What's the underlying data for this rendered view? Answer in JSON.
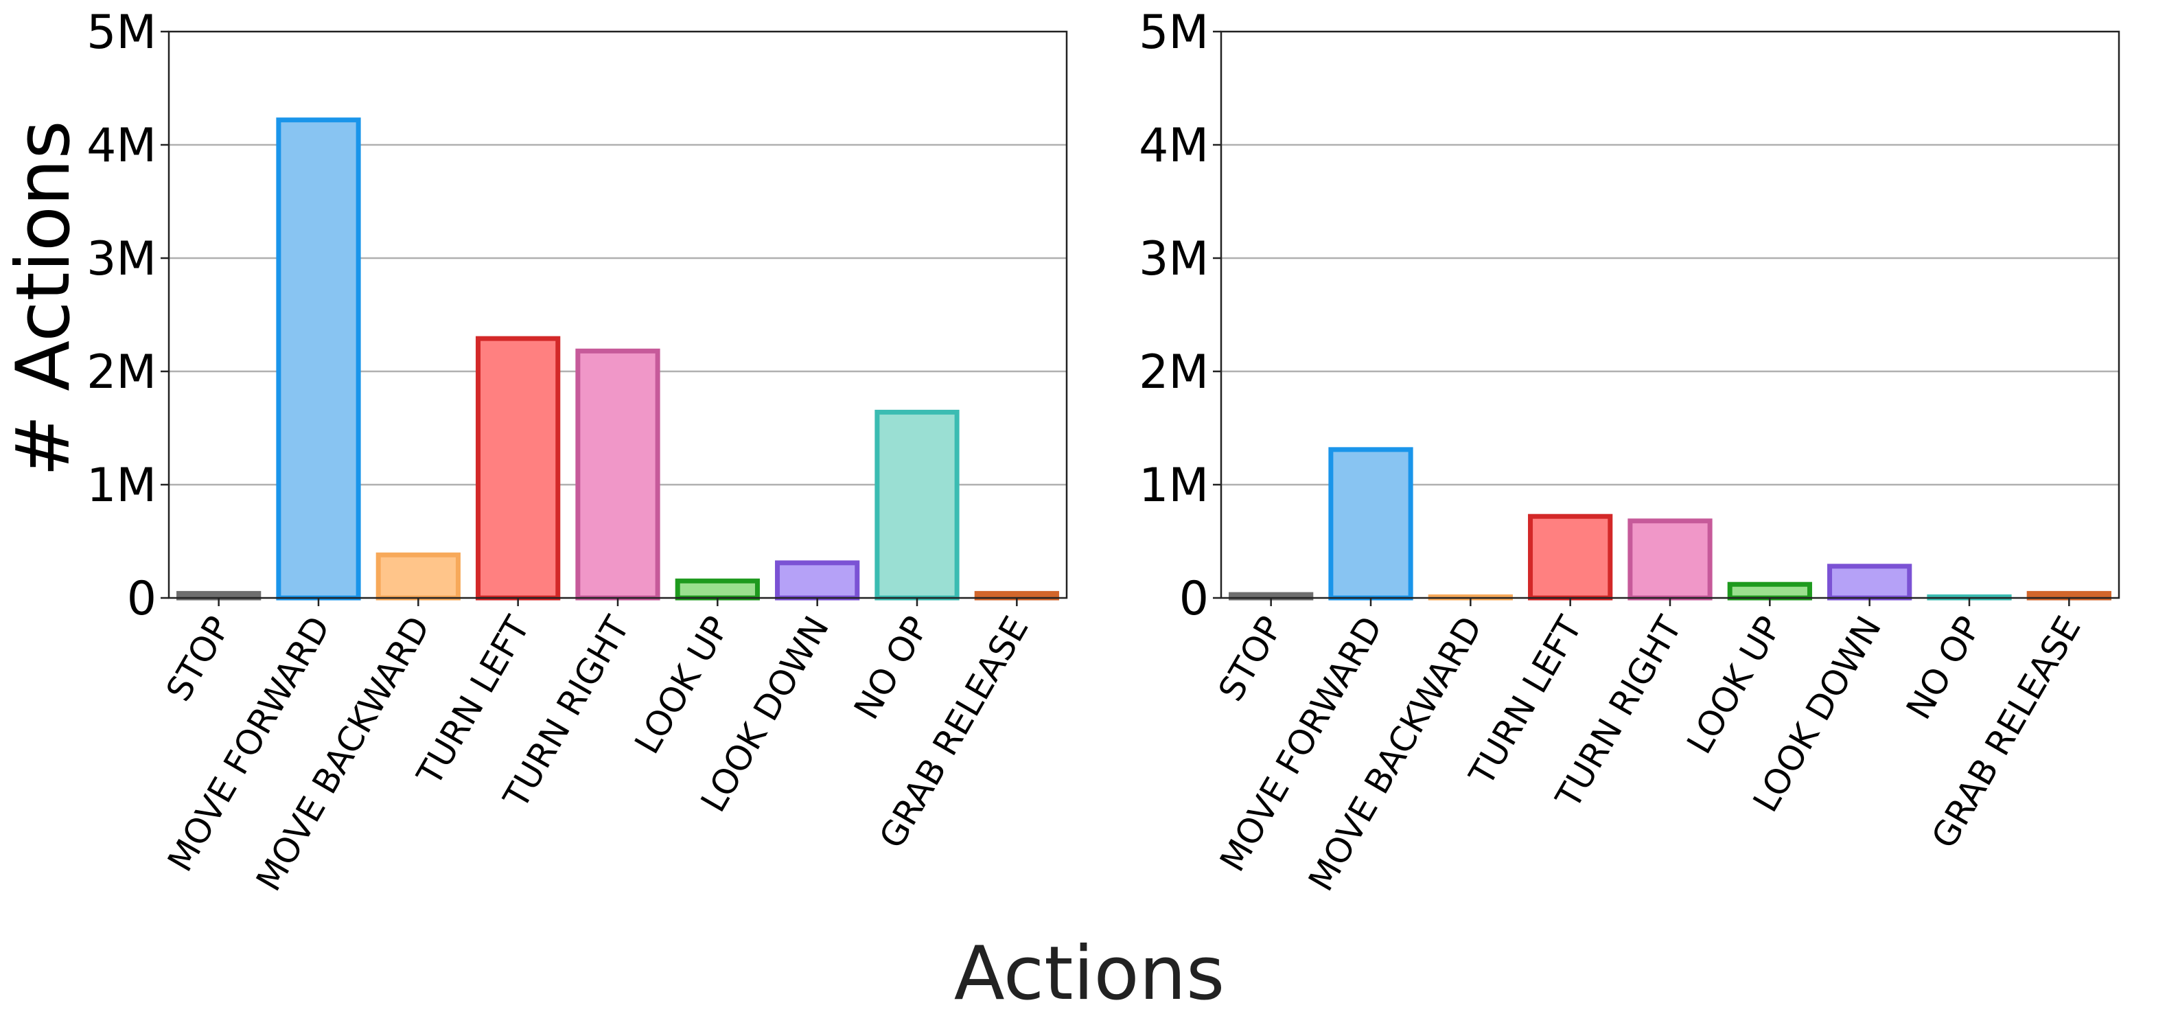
{
  "chart_data": [
    {
      "type": "bar",
      "categories": [
        "STOP",
        "MOVE FORWARD",
        "MOVE BACKWARD",
        "TURN LEFT",
        "TURN RIGHT",
        "LOOK UP",
        "LOOK DOWN",
        "NO OP",
        "GRAB RELEASE"
      ],
      "values": [
        40000,
        4220000,
        380000,
        2290000,
        2180000,
        150000,
        310000,
        1640000,
        40000
      ],
      "ylabel": "# Actions",
      "ylim": [
        0,
        5000000
      ],
      "yticks": [
        0,
        1000000,
        2000000,
        3000000,
        4000000,
        5000000
      ],
      "ytick_labels": [
        "0",
        "1M",
        "2M",
        "3M",
        "4M",
        "5M"
      ],
      "grid": "horizontal",
      "legend": "none"
    },
    {
      "type": "bar",
      "categories": [
        "STOP",
        "MOVE FORWARD",
        "MOVE BACKWARD",
        "TURN LEFT",
        "TURN RIGHT",
        "LOOK UP",
        "LOOK DOWN",
        "NO OP",
        "GRAB RELEASE"
      ],
      "values": [
        30000,
        1310000,
        10000,
        720000,
        680000,
        120000,
        280000,
        10000,
        40000
      ],
      "ylim": [
        0,
        5000000
      ],
      "yticks": [
        0,
        1000000,
        2000000,
        3000000,
        4000000,
        5000000
      ],
      "ytick_labels": [
        "0",
        "1M",
        "2M",
        "3M",
        "4M",
        "5M"
      ],
      "grid": "horizontal",
      "legend": "none"
    }
  ],
  "xlabel": "Actions",
  "colors": {
    "fills": [
      "#8c8c8c",
      "#88c4f2",
      "#ffc58a",
      "#ff8080",
      "#f097c8",
      "#9be08f",
      "#b5a1f7",
      "#9adfd3",
      "#f5a07a"
    ],
    "edges": [
      "#6e6e6e",
      "#1a95ea",
      "#f7a95a",
      "#d32828",
      "#c65a9a",
      "#1e9a1e",
      "#7b52d4",
      "#3bbcb2",
      "#d2662b"
    ]
  }
}
